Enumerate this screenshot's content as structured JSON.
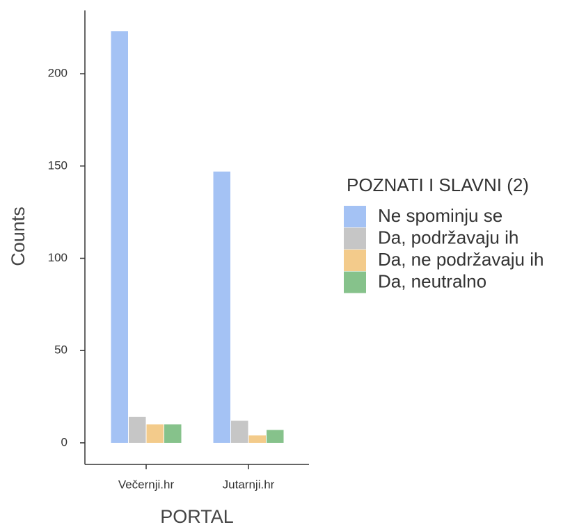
{
  "chart_data": {
    "type": "bar",
    "categories": [
      "Večernji.hr",
      "Jutarnji.hr"
    ],
    "series": [
      {
        "name": "Ne spominju se",
        "color": "#a4c2f4",
        "values": [
          223,
          147
        ]
      },
      {
        "name": "Da, podržavaju ih",
        "color": "#c6c6c6",
        "values": [
          14,
          12
        ]
      },
      {
        "name": "Da, ne podržavaju ih",
        "color": "#f3cb8b",
        "values": [
          10,
          4
        ]
      },
      {
        "name": "Da, neutralno",
        "color": "#86c28b",
        "values": [
          10,
          7
        ]
      }
    ],
    "legend_title": "POZNATI I SLAVNI  (2)",
    "xlabel": "PORTAL",
    "ylabel": "Counts",
    "ylim": [
      -11.7,
      234.3
    ],
    "yticks": [
      0,
      50,
      100,
      150,
      200
    ],
    "grid": false,
    "legend": "right"
  }
}
